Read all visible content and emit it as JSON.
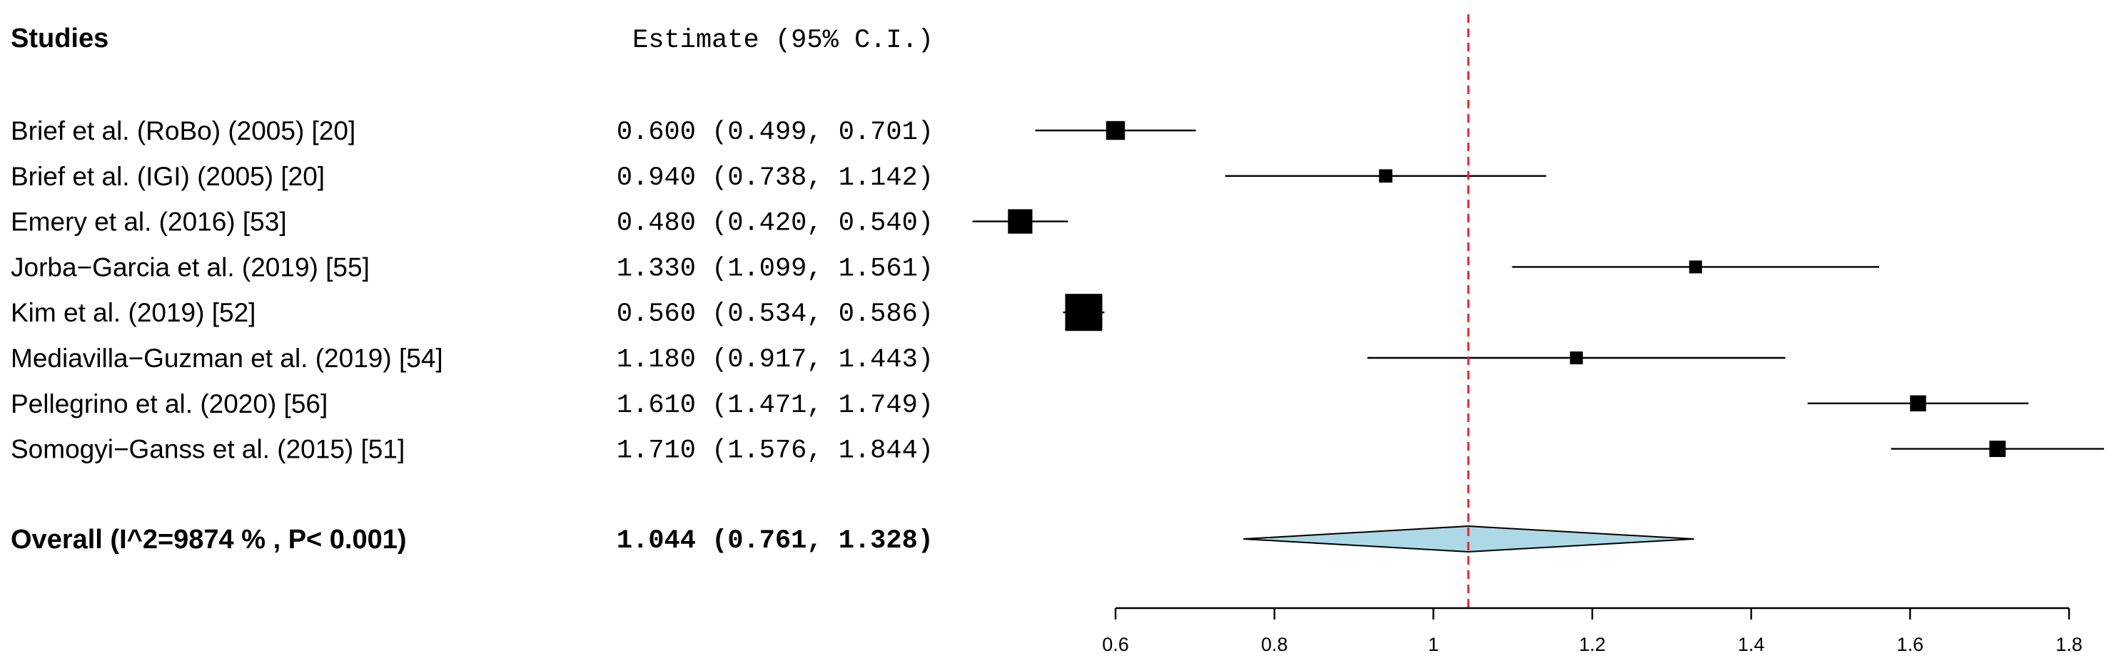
{
  "header": {
    "studies_label": "Studies",
    "estimate_label": "Estimate (95% C.I.)"
  },
  "colors": {
    "reference_line": "#e8262f",
    "diamond_fill": "#add8e6",
    "marker": "#000000"
  },
  "chart_data": {
    "type": "forest",
    "x_axis": {
      "ticks": [
        0.6,
        0.8,
        1,
        1.2,
        1.4,
        1.6,
        1.8
      ],
      "tick_labels": [
        "0.6",
        "0.8",
        "1",
        "1.2",
        "1.4",
        "1.6",
        "1.8"
      ],
      "range": [
        0.6,
        1.8
      ]
    },
    "reference_line": 1.044,
    "studies": [
      {
        "label": "Brief et al. (RoBo) (2005) [20]",
        "estimate": 0.6,
        "lower": 0.499,
        "upper": 0.701,
        "ci_text": "0.600 (0.499, 0.701)"
      },
      {
        "label": "Brief et al. (IGI) (2005) [20]",
        "estimate": 0.94,
        "lower": 0.738,
        "upper": 1.142,
        "ci_text": "0.940 (0.738, 1.142)"
      },
      {
        "label": "Emery et al.  (2016) [53]",
        "estimate": 0.48,
        "lower": 0.42,
        "upper": 0.54,
        "ci_text": "0.480 (0.420, 0.540)"
      },
      {
        "label": "Jorba−Garcia et al. (2019) [55]",
        "estimate": 1.33,
        "lower": 1.099,
        "upper": 1.561,
        "ci_text": "1.330 (1.099, 1.561)"
      },
      {
        "label": "Kim et al. (2019) [52]",
        "estimate": 0.56,
        "lower": 0.534,
        "upper": 0.586,
        "ci_text": "0.560 (0.534, 0.586)"
      },
      {
        "label": "Mediavilla−Guzman et al. (2019) [54]",
        "estimate": 1.18,
        "lower": 0.917,
        "upper": 1.443,
        "ci_text": "1.180 (0.917, 1.443)"
      },
      {
        "label": "Pellegrino et al. (2020) [56]",
        "estimate": 1.61,
        "lower": 1.471,
        "upper": 1.749,
        "ci_text": "1.610 (1.471, 1.749)"
      },
      {
        "label": "Somogyi−Ganss et al. (2015) [51]",
        "estimate": 1.71,
        "lower": 1.576,
        "upper": 1.844,
        "ci_text": "1.710 (1.576, 1.844)"
      }
    ],
    "overall": {
      "label": "Overall (I^2=9874 % , P< 0.001)",
      "estimate": 1.044,
      "lower": 0.761,
      "upper": 1.328,
      "ci_text": "1.044 (0.761, 1.328)"
    }
  }
}
